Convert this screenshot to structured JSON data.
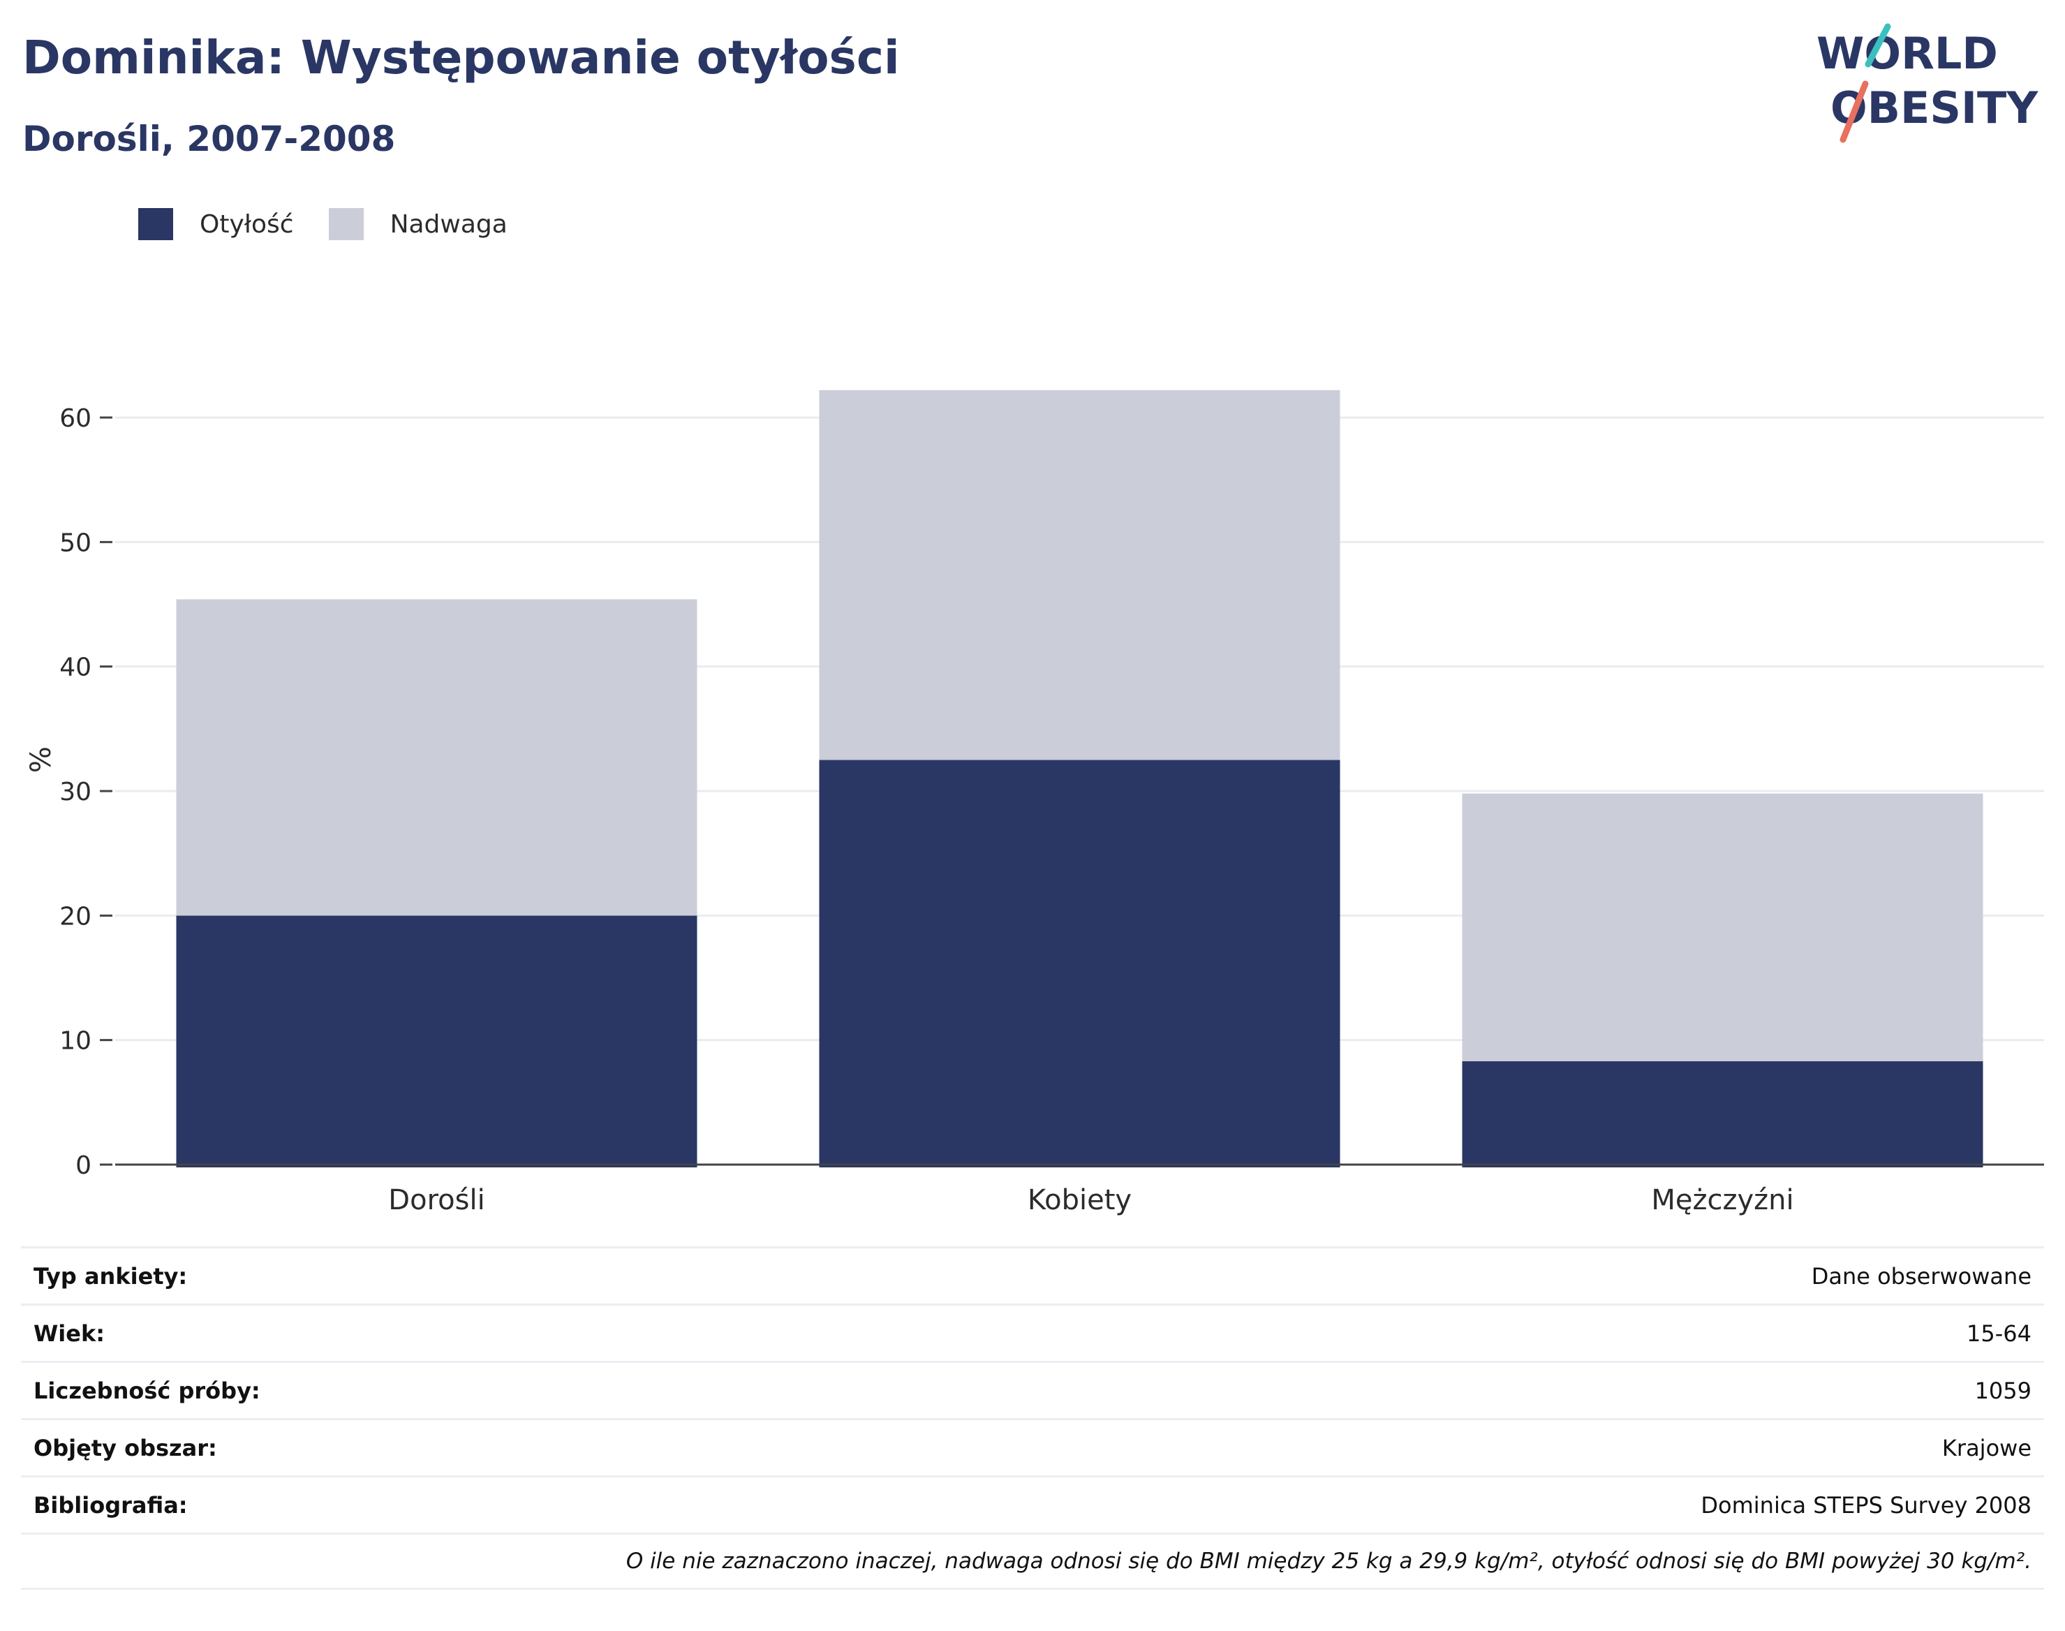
{
  "header": {
    "title": "Dominika: Występowanie otyłości",
    "subtitle": "Dorośli, 2007-2008"
  },
  "logo": {
    "line1": "WORLD",
    "line2": "OBESITY",
    "colors": [
      "#2a3764",
      "#3bbfbf",
      "#e8705e"
    ]
  },
  "legend": [
    {
      "label": "Otyłość",
      "color": "#2a3764"
    },
    {
      "label": "Nadwaga",
      "color": "#cbcdd8"
    }
  ],
  "chart_data": {
    "type": "bar",
    "stacked": true,
    "categories": [
      "Dorośli",
      "Kobiety",
      "Mężczyźni"
    ],
    "series": [
      {
        "name": "Otyłość",
        "values": [
          20.0,
          32.5,
          8.3
        ],
        "color": "#2a3764"
      },
      {
        "name": "Nadwaga",
        "values": [
          25.4,
          29.7,
          21.5
        ],
        "color": "#cbcdd8"
      }
    ],
    "ylabel": "%",
    "ylim": [
      0,
      65
    ],
    "yticks": [
      0,
      10,
      20,
      30,
      40,
      50,
      60
    ],
    "grid": true,
    "legend_position": "top-left"
  },
  "info": [
    {
      "key": "Typ ankiety:",
      "value": "Dane obserwowane"
    },
    {
      "key": "Wiek:",
      "value": "15-64"
    },
    {
      "key": "Liczebność próby:",
      "value": "1059"
    },
    {
      "key": "Objęty obszar:",
      "value": "Krajowe"
    },
    {
      "key": "Bibliografia:",
      "value": "Dominica STEPS Survey 2008"
    }
  ],
  "note": "O ile nie zaznaczono inaczej, nadwaga odnosi się do BMI między 25 kg a 29,9 kg/m², otyłość odnosi się do BMI powyżej 30 kg/m²."
}
